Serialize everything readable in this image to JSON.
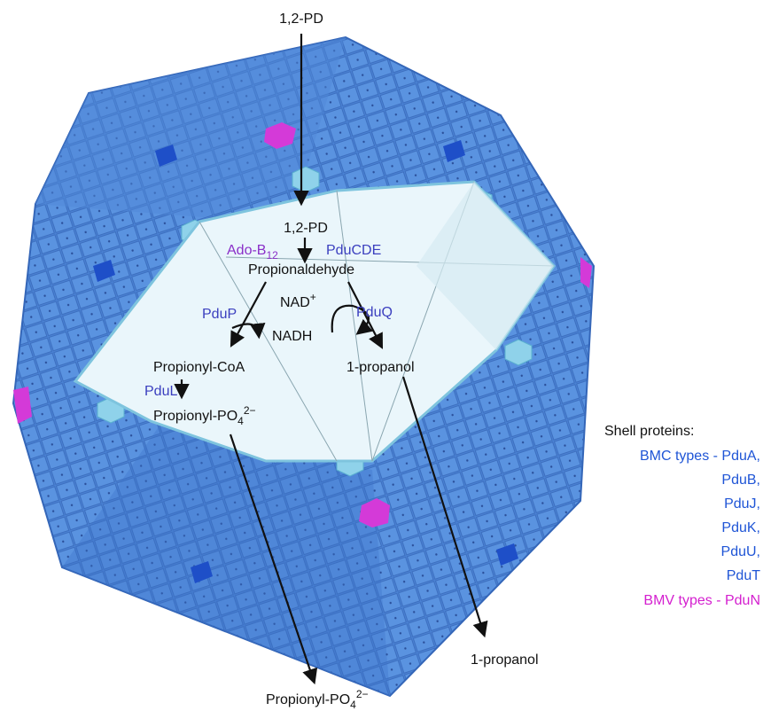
{
  "diagram": {
    "outside_input": "1,2-PD",
    "inside_input": "1,2-PD",
    "cofactor": {
      "base": "Ado-B",
      "sub": "12"
    },
    "enzyme_cde": "PduCDE",
    "intermediate": "Propionaldehyde",
    "enzyme_p": "PduP",
    "nad": {
      "base": "NAD",
      "sup": "+"
    },
    "enzyme_q": "PduQ",
    "nadh": "NADH",
    "propionyl_coa": "Propionyl-CoA",
    "propanol_inside": "1-propanol",
    "enzyme_l": "PduL",
    "propionyl_po4_inside": {
      "base": "Propionyl-PO",
      "sub": "4",
      "sup": "2−"
    },
    "propanol_outside": "1-propanol",
    "propionyl_po4_outside": {
      "base": "Propionyl-PO",
      "sub": "4",
      "sup": "2−"
    }
  },
  "legend": {
    "title": "Shell proteins:",
    "bmc_lines": [
      "BMC types - PduA,",
      "PduB,",
      "PduJ,",
      "PduK,",
      "PduU,",
      "PduT"
    ],
    "bmv_line": "BMV types - PduN"
  }
}
